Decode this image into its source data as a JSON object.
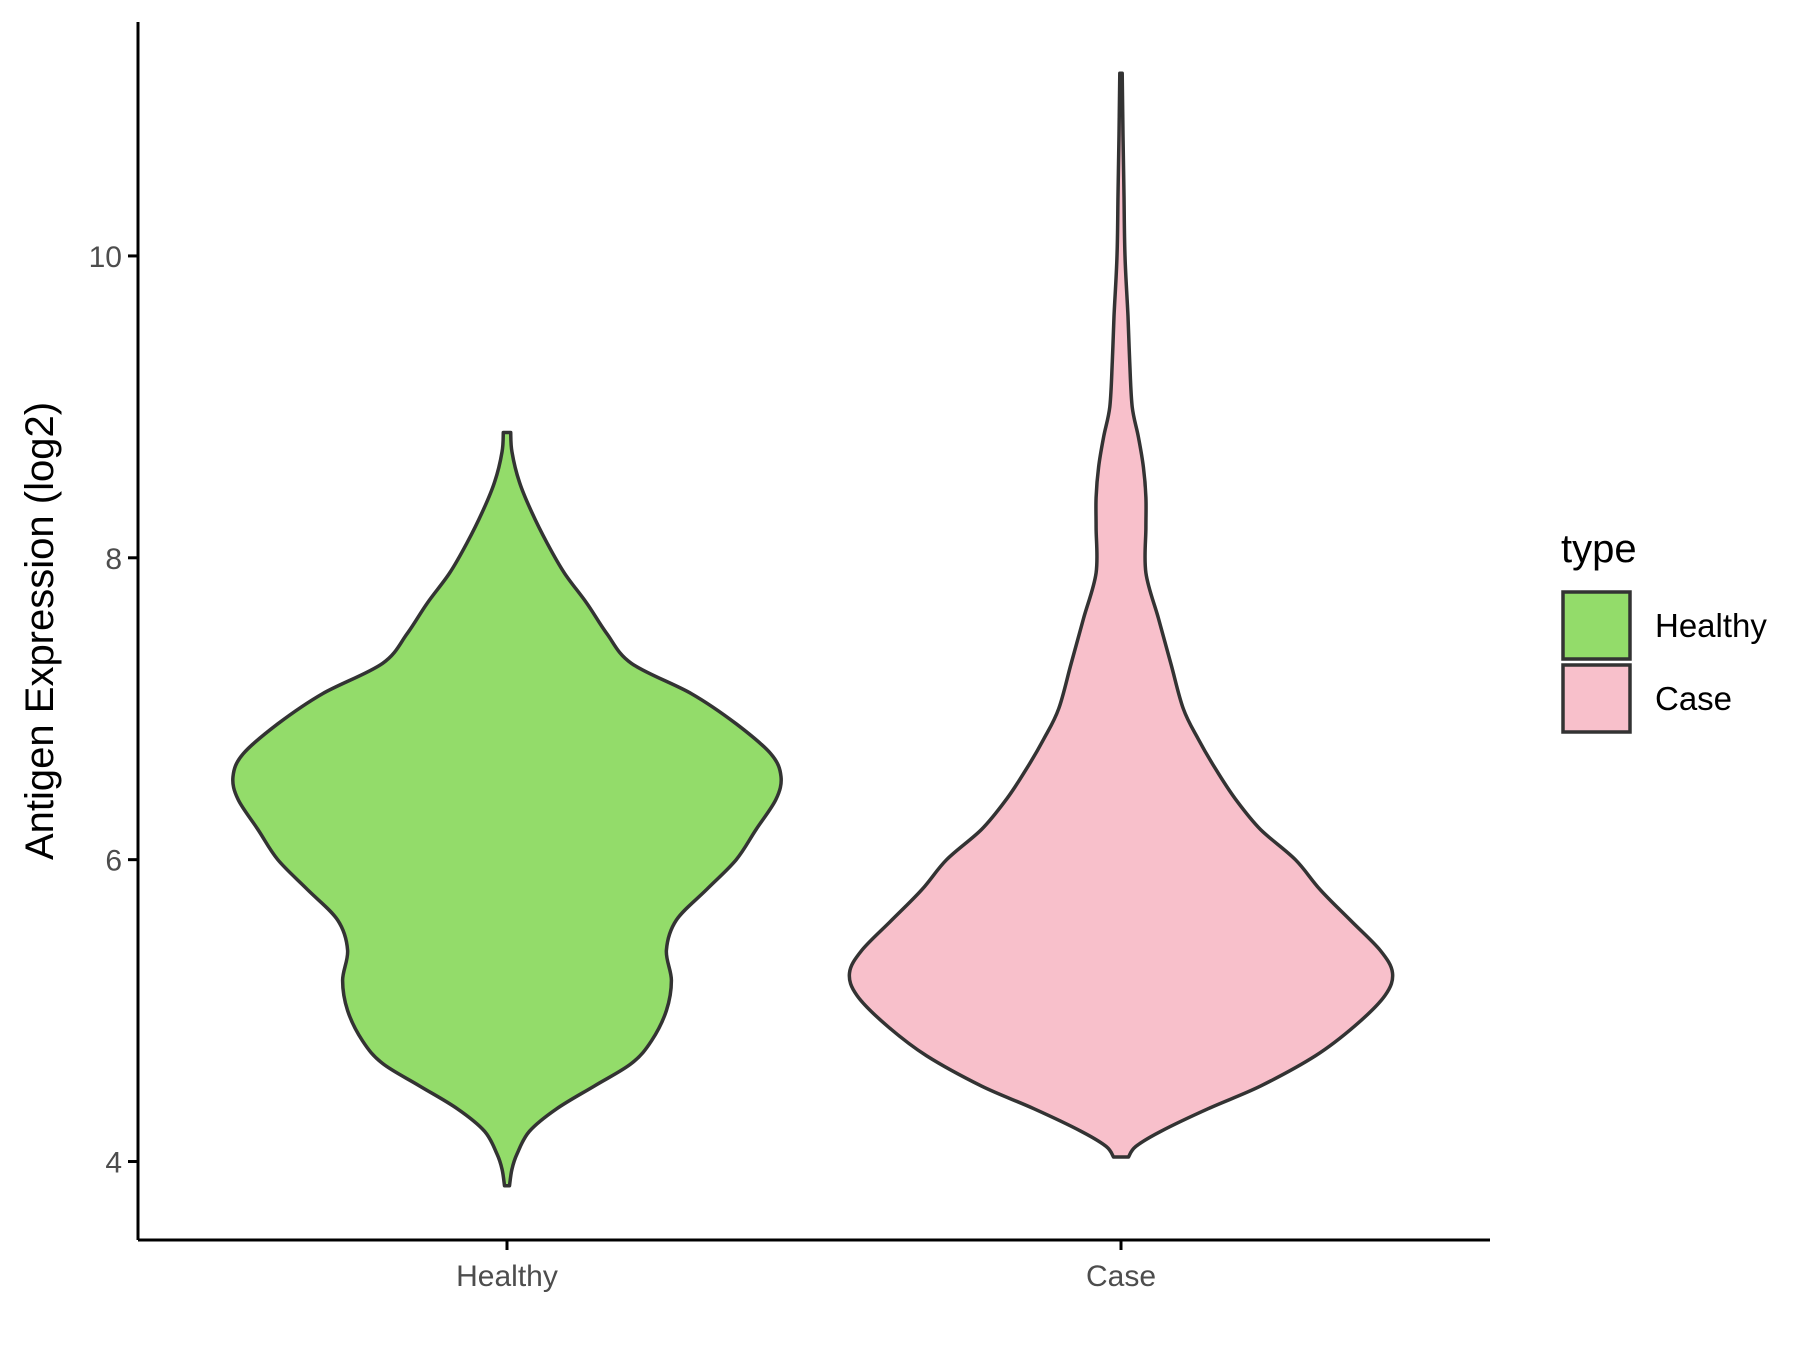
{
  "chart_data": {
    "type": "violin",
    "title": "",
    "xlabel": "",
    "ylabel": "Antigen Expression (log2)",
    "ylim": [
      3.48,
      11.55
    ],
    "y_ticks": [
      4,
      6,
      8,
      10
    ],
    "y_tick_labels": [
      "4",
      "6",
      "8",
      "10"
    ],
    "grid": false,
    "categories": [
      "Healthy",
      "Case"
    ],
    "legend": {
      "title": "type",
      "position": "right",
      "entries": [
        "Healthy",
        "Case"
      ]
    },
    "series": [
      {
        "name": "Healthy",
        "color": "#93DC6A",
        "y_min": 3.84,
        "y_max": 8.83,
        "density_profile": [
          [
            3.84,
            0.01
          ],
          [
            3.95,
            0.02
          ],
          [
            4.05,
            0.04
          ],
          [
            4.2,
            0.09
          ],
          [
            4.35,
            0.2
          ],
          [
            4.5,
            0.35
          ],
          [
            4.65,
            0.5
          ],
          [
            4.8,
            0.58
          ],
          [
            5.0,
            0.64
          ],
          [
            5.2,
            0.66
          ],
          [
            5.4,
            0.64
          ],
          [
            5.6,
            0.68
          ],
          [
            5.8,
            0.8
          ],
          [
            6.0,
            0.92
          ],
          [
            6.2,
            1.0
          ],
          [
            6.4,
            1.08
          ],
          [
            6.55,
            1.1
          ],
          [
            6.7,
            1.06
          ],
          [
            6.9,
            0.92
          ],
          [
            7.1,
            0.74
          ],
          [
            7.3,
            0.5
          ],
          [
            7.5,
            0.4
          ],
          [
            7.7,
            0.32
          ],
          [
            7.9,
            0.23
          ],
          [
            8.1,
            0.16
          ],
          [
            8.3,
            0.1
          ],
          [
            8.5,
            0.05
          ],
          [
            8.7,
            0.02
          ],
          [
            8.83,
            0.015
          ]
        ]
      },
      {
        "name": "Case",
        "color": "#F8C0CB",
        "y_min": 4.03,
        "y_max": 11.21,
        "density_profile": [
          [
            4.03,
            0.03
          ],
          [
            4.1,
            0.06
          ],
          [
            4.2,
            0.16
          ],
          [
            4.35,
            0.35
          ],
          [
            4.5,
            0.56
          ],
          [
            4.7,
            0.78
          ],
          [
            4.9,
            0.94
          ],
          [
            5.1,
            1.06
          ],
          [
            5.25,
            1.09
          ],
          [
            5.4,
            1.04
          ],
          [
            5.6,
            0.92
          ],
          [
            5.8,
            0.8
          ],
          [
            6.0,
            0.7
          ],
          [
            6.2,
            0.56
          ],
          [
            6.4,
            0.46
          ],
          [
            6.6,
            0.38
          ],
          [
            6.8,
            0.31
          ],
          [
            7.0,
            0.25
          ],
          [
            7.3,
            0.2
          ],
          [
            7.6,
            0.15
          ],
          [
            7.9,
            0.1
          ],
          [
            8.2,
            0.1
          ],
          [
            8.4,
            0.1
          ],
          [
            8.6,
            0.09
          ],
          [
            8.8,
            0.07
          ],
          [
            9.0,
            0.045
          ],
          [
            9.3,
            0.035
          ],
          [
            9.6,
            0.028
          ],
          [
            10.0,
            0.016
          ],
          [
            10.4,
            0.012
          ],
          [
            10.8,
            0.008
          ],
          [
            11.21,
            0.005
          ]
        ]
      }
    ]
  }
}
